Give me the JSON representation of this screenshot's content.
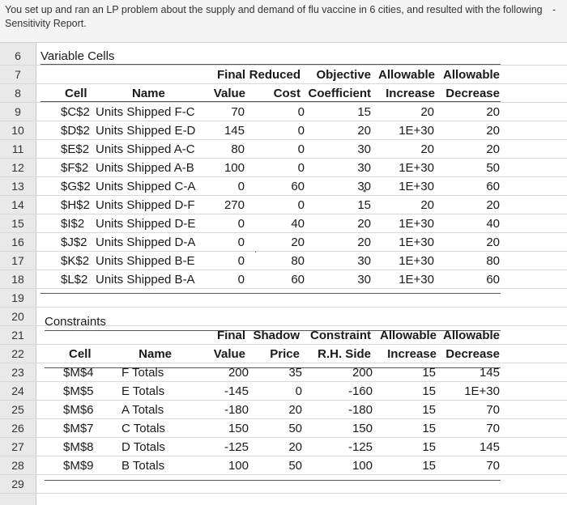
{
  "intro": {
    "line1": "You set up and ran an LP problem about the supply and demand of flu vaccine in 6 cities, and resulted with the following",
    "line2": "Sensitivity Report."
  },
  "row_numbers": [
    "6",
    "7",
    "8",
    "9",
    "10",
    "11",
    "12",
    "13",
    "14",
    "15",
    "16",
    "17",
    "18",
    "19",
    "20",
    "21",
    "22",
    "23",
    "24",
    "25",
    "26",
    "27",
    "28",
    "29"
  ],
  "variable_cells": {
    "section_title": "Variable Cells",
    "header_top": [
      "",
      "",
      "Final",
      "Reduced",
      "Objective",
      "Allowable",
      "Allowable"
    ],
    "header_bottom": [
      "Cell",
      "Name",
      "Value",
      "Cost",
      "Coefficient",
      "Increase",
      "Decrease"
    ],
    "rows": [
      {
        "cell": "$C$2",
        "name": "Units Shipped F-C",
        "final_value": "70",
        "reduced_cost": "0",
        "objective_coefficient": "15",
        "allowable_increase": "20",
        "allowable_decrease": "20"
      },
      {
        "cell": "$D$2",
        "name": "Units Shipped E-D",
        "final_value": "145",
        "reduced_cost": "0",
        "objective_coefficient": "20",
        "allowable_increase": "1E+30",
        "allowable_decrease": "20"
      },
      {
        "cell": "$E$2",
        "name": "Units Shipped A-C",
        "final_value": "80",
        "reduced_cost": "0",
        "objective_coefficient": "30",
        "allowable_increase": "20",
        "allowable_decrease": "20"
      },
      {
        "cell": "$F$2",
        "name": "Units Shipped A-B",
        "final_value": "100",
        "reduced_cost": "0",
        "objective_coefficient": "30",
        "allowable_increase": "1E+30",
        "allowable_decrease": "50"
      },
      {
        "cell": "$G$2",
        "name": "Units Shipped C-A",
        "final_value": "0",
        "reduced_cost": "60",
        "objective_coefficient": "30",
        "allowable_increase": "1E+30",
        "allowable_decrease": "60"
      },
      {
        "cell": "$H$2",
        "name": "Units Shipped D-F",
        "final_value": "270",
        "reduced_cost": "0",
        "objective_coefficient": "15",
        "allowable_increase": "20",
        "allowable_decrease": "20"
      },
      {
        "cell": "$I$2",
        "name": "Units Shipped D-E",
        "final_value": "0",
        "reduced_cost": "40",
        "objective_coefficient": "20",
        "allowable_increase": "1E+30",
        "allowable_decrease": "40"
      },
      {
        "cell": "$J$2",
        "name": "Units Shipped D-A",
        "final_value": "0",
        "reduced_cost": "20",
        "objective_coefficient": "20",
        "allowable_increase": "1E+30",
        "allowable_decrease": "20"
      },
      {
        "cell": "$K$2",
        "name": "Units Shipped B-E",
        "final_value": "0",
        "reduced_cost": "80",
        "objective_coefficient": "30",
        "allowable_increase": "1E+30",
        "allowable_decrease": "80"
      },
      {
        "cell": "$L$2",
        "name": "Units Shipped B-A",
        "final_value": "0",
        "reduced_cost": "60",
        "objective_coefficient": "30",
        "allowable_increase": "1E+30",
        "allowable_decrease": "60"
      }
    ]
  },
  "constraints": {
    "section_title": "Constraints",
    "header_top": [
      "",
      "",
      "Final",
      "Shadow",
      "Constraint",
      "Allowable",
      "Allowable"
    ],
    "header_bottom": [
      "Cell",
      "Name",
      "Value",
      "Price",
      "R.H. Side",
      "Increase",
      "Decrease"
    ],
    "rows": [
      {
        "cell": "$M$4",
        "name": "F Totals",
        "final_value": "200",
        "shadow_price": "35",
        "rh_side": "200",
        "allowable_increase": "15",
        "allowable_decrease": "145"
      },
      {
        "cell": "$M$5",
        "name": "E Totals",
        "final_value": "-145",
        "shadow_price": "0",
        "rh_side": "-160",
        "allowable_increase": "15",
        "allowable_decrease": "1E+30"
      },
      {
        "cell": "$M$6",
        "name": "A Totals",
        "final_value": "-180",
        "shadow_price": "20",
        "rh_side": "-180",
        "allowable_increase": "15",
        "allowable_decrease": "70"
      },
      {
        "cell": "$M$7",
        "name": "C Totals",
        "final_value": "150",
        "shadow_price": "50",
        "rh_side": "150",
        "allowable_increase": "15",
        "allowable_decrease": "70"
      },
      {
        "cell": "$M$8",
        "name": "D Totals",
        "final_value": "-125",
        "shadow_price": "20",
        "rh_side": "-125",
        "allowable_increase": "15",
        "allowable_decrease": "145"
      },
      {
        "cell": "$M$9",
        "name": "B Totals",
        "final_value": "100",
        "shadow_price": "50",
        "rh_side": "100",
        "allowable_increase": "15",
        "allowable_decrease": "70"
      }
    ]
  }
}
